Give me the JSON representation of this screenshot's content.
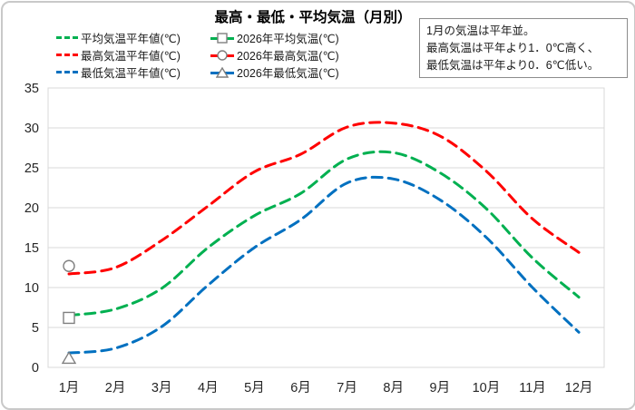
{
  "title": "最高・最低・平均気温（月別）",
  "annotation": {
    "lines": [
      "1月の気温は平年並。",
      "最高気温は平年より1．0℃高く、",
      "最低気温は平年より0．6℃低い。"
    ]
  },
  "legend": {
    "rows": [
      {
        "normal_label": "平均気温平年値(℃)",
        "year_label": "2026年平均気温(℃)",
        "color": "#00B050",
        "marker": "square"
      },
      {
        "normal_label": "最高気温平年値(℃)",
        "year_label": "2026年最高気温(℃)",
        "color": "#FF0000",
        "marker": "circle"
      },
      {
        "normal_label": "最低気温平年値(℃)",
        "year_label": "2026年最低気温(℃)",
        "color": "#0070C0",
        "marker": "triangle"
      }
    ]
  },
  "chart_data": {
    "type": "line",
    "title": "最高・最低・平均気温（月別）",
    "categories": [
      "1月",
      "2月",
      "3月",
      "4月",
      "5月",
      "6月",
      "7月",
      "8月",
      "9月",
      "10月",
      "11月",
      "12月"
    ],
    "series": [
      {
        "name": "最高気温平年値(℃)",
        "color": "#FF0000",
        "line": "dashed",
        "smooth": true,
        "values": [
          11.7,
          12.5,
          15.9,
          20.2,
          24.5,
          26.7,
          30.1,
          30.6,
          29.0,
          24.6,
          18.6,
          14.4
        ]
      },
      {
        "name": "平均気温平年値(℃)",
        "color": "#00B050",
        "line": "dashed",
        "smooth": true,
        "values": [
          6.5,
          7.3,
          9.9,
          15.0,
          19.0,
          21.8,
          26.1,
          26.9,
          24.4,
          19.9,
          13.7,
          8.8
        ]
      },
      {
        "name": "最低気温平年値(℃)",
        "color": "#0070C0",
        "line": "dashed",
        "smooth": true,
        "values": [
          1.8,
          2.4,
          5.1,
          10.3,
          15.0,
          18.5,
          23.1,
          23.6,
          21.0,
          16.3,
          10.0,
          4.4
        ]
      },
      {
        "name": "2026年平均気温(℃)",
        "color": "#00B050",
        "line": "none",
        "marker": "square",
        "values": [
          6.2,
          null,
          null,
          null,
          null,
          null,
          null,
          null,
          null,
          null,
          null,
          null
        ]
      },
      {
        "name": "2026年最高気温(℃)",
        "color": "#FF0000",
        "line": "none",
        "marker": "circle",
        "values": [
          12.7,
          null,
          null,
          null,
          null,
          null,
          null,
          null,
          null,
          null,
          null,
          null
        ]
      },
      {
        "name": "2026年最低気温(℃)",
        "color": "#0070C0",
        "line": "none",
        "marker": "triangle",
        "values": [
          1.2,
          null,
          null,
          null,
          null,
          null,
          null,
          null,
          null,
          null,
          null,
          null
        ]
      }
    ],
    "ylim": [
      0,
      35
    ],
    "ytick_interval": 5,
    "grid": true,
    "legend_position": "top-left",
    "marker_fill": "#FFFFFF",
    "marker_stroke": "#7F7F7F",
    "gridline_color": "#D9D9D9",
    "axis_line_color": "#A6A6A6",
    "tick_label_color": "#262626"
  }
}
